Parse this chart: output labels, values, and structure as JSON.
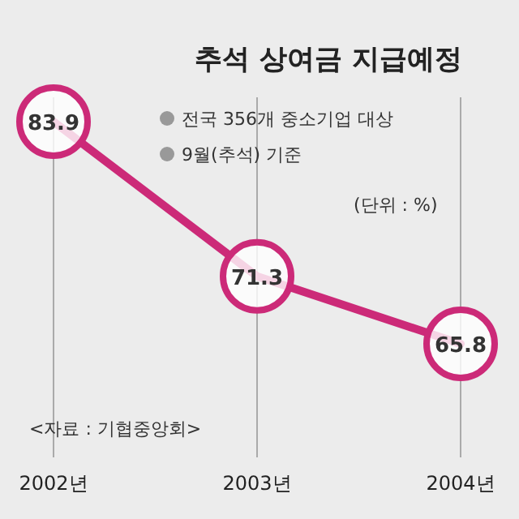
{
  "chart_data": {
    "type": "line",
    "title": "추석 상여금 지급예정",
    "categories": [
      "2002년",
      "2003년",
      "2004년"
    ],
    "series": [
      {
        "color": "#cc2a78",
        "values": [
          83.9,
          71.3,
          65.8
        ]
      }
    ],
    "data_labels": true,
    "grid": "x",
    "marker": "circle",
    "annotations": [
      "전국 356개 중소기업 대상",
      "9월(추석) 기준",
      "(단위 : %)",
      "<자료 : 기협중앙회>"
    ]
  }
}
